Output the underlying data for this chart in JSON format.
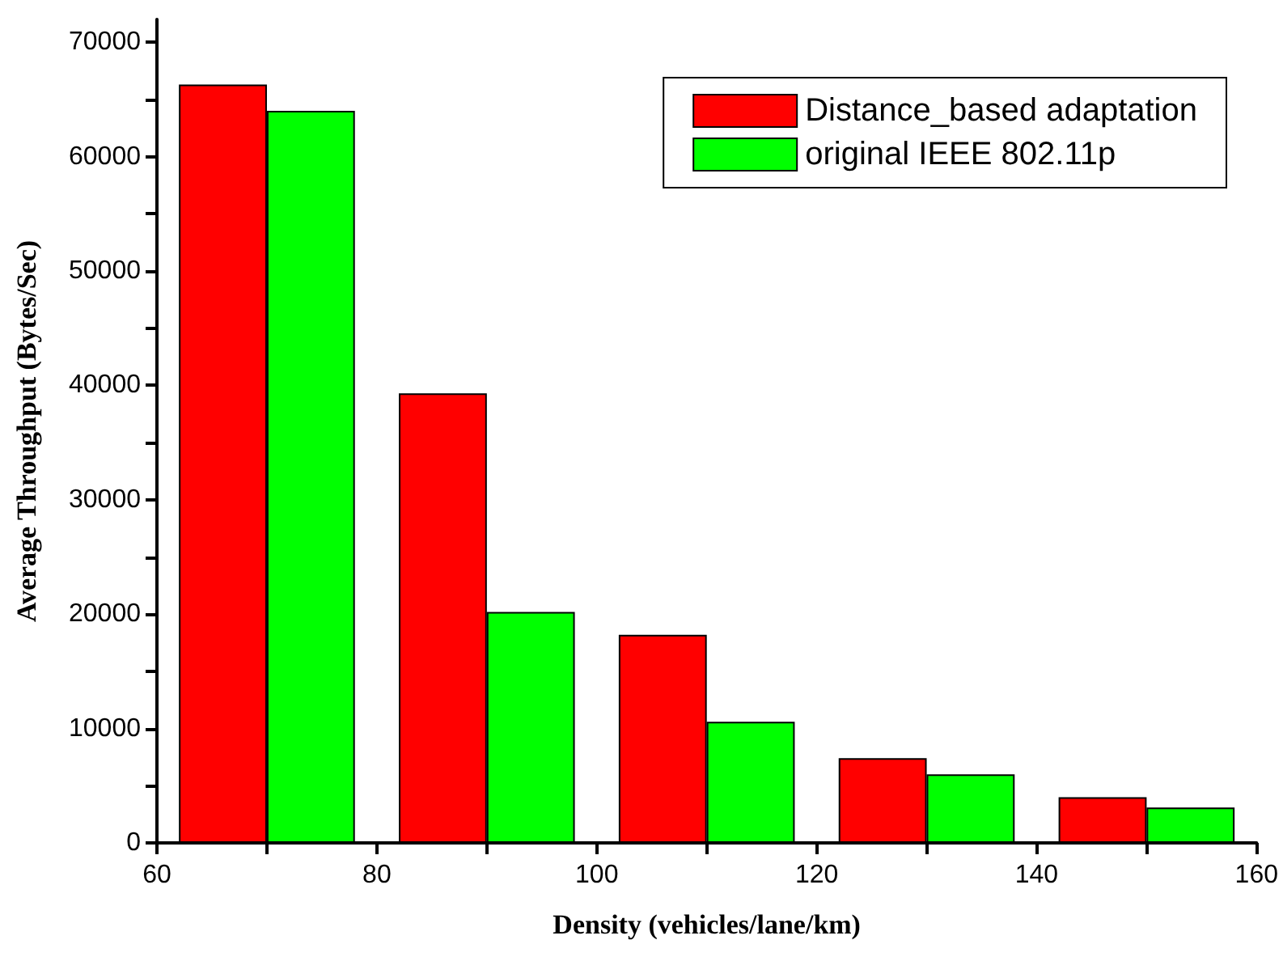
{
  "chart_data": {
    "type": "bar",
    "xlabel": "Density (vehicles/lane/km)",
    "ylabel": "Average Throughput (Bytes/Sec)",
    "series": [
      {
        "name": "Distance_based adaptation",
        "color": "#ff0000",
        "x": [
          66,
          86,
          106,
          126,
          146
        ],
        "values": [
          66300,
          39300,
          18200,
          7400,
          4000
        ]
      },
      {
        "name": "original IEEE 802.11p",
        "color": "#00ff00",
        "x": [
          74,
          94,
          114,
          134,
          154
        ],
        "values": [
          64000,
          20200,
          10600,
          6000,
          3100
        ]
      }
    ],
    "xlim": [
      60,
      160
    ],
    "xticks": [
      60,
      {
        "value": 70,
        "label": null
      },
      80,
      {
        "value": 90,
        "label": null
      },
      100,
      {
        "value": 110,
        "label": null
      },
      120,
      {
        "value": 130,
        "label": null
      },
      140,
      {
        "value": 150,
        "label": null
      },
      160
    ],
    "ylim": [
      0,
      72000
    ],
    "yticks": [
      0,
      {
        "value": 5000,
        "label": null
      },
      10000,
      {
        "value": 15000,
        "label": null
      },
      20000,
      {
        "value": 25000,
        "label": null
      },
      30000,
      {
        "value": 35000,
        "label": null
      },
      40000,
      {
        "value": 45000,
        "label": null
      },
      50000,
      {
        "value": 55000,
        "label": null
      },
      60000,
      {
        "value": 65000,
        "label": null
      },
      70000
    ],
    "grid": false,
    "legend": "top right"
  }
}
